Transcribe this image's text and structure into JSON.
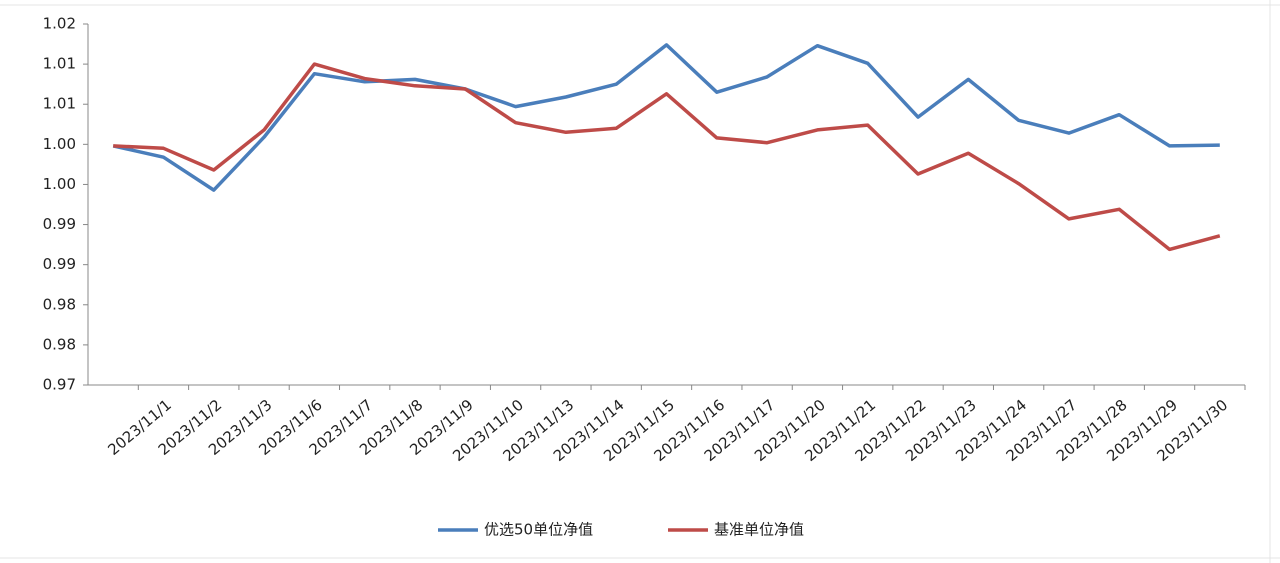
{
  "chart_data": {
    "type": "line",
    "categories": [
      null,
      "2023/11/1",
      "2023/11/2",
      "2023/11/3",
      "2023/11/6",
      "2023/11/7",
      "2023/11/8",
      "2023/11/9",
      "2023/11/10",
      "2023/11/13",
      "2023/11/14",
      "2023/11/15",
      "2023/11/16",
      "2023/11/17",
      "2023/11/20",
      "2023/11/21",
      "2023/11/22",
      "2023/11/23",
      "2023/11/24",
      "2023/11/27",
      "2023/11/28",
      "2023/11/29",
      "2023/11/30"
    ],
    "series": [
      {
        "name": "优选50单位净值",
        "color": "#4a7ebb",
        "values": [
          1.0048,
          1.0034,
          0.9993,
          1.0059,
          1.0138,
          1.0128,
          1.0131,
          1.0119,
          1.0097,
          1.0109,
          1.0125,
          1.0174,
          1.0115,
          1.0134,
          1.0173,
          1.0151,
          1.0084,
          1.0131,
          1.008,
          1.0064,
          1.0087,
          1.0048,
          1.0049
        ]
      },
      {
        "name": "基准单位净值",
        "color": "#be4b48",
        "values": [
          1.0048,
          1.0045,
          1.0018,
          1.0068,
          1.015,
          1.0132,
          1.0123,
          1.0119,
          1.0077,
          1.0065,
          1.007,
          1.0113,
          1.0058,
          1.0052,
          1.0068,
          1.0074,
          1.0013,
          1.0039,
          1.0001,
          0.9957,
          0.9969,
          0.9919,
          0.9936
        ]
      }
    ],
    "ylim": [
      0.975,
      1.02
    ],
    "yticks": [
      {
        "value": 0.975,
        "label": "0.97"
      },
      {
        "value": 0.98,
        "label": "0.98"
      },
      {
        "value": 0.985,
        "label": "0.98"
      },
      {
        "value": 0.99,
        "label": "0.99"
      },
      {
        "value": 0.995,
        "label": "0.99"
      },
      {
        "value": 1.0,
        "label": "1.00"
      },
      {
        "value": 1.005,
        "label": "1.00"
      },
      {
        "value": 1.01,
        "label": "1.01"
      },
      {
        "value": 1.015,
        "label": "1.01"
      },
      {
        "value": 1.02,
        "label": "1.02"
      }
    ],
    "grid": false,
    "legend": "bottom"
  }
}
